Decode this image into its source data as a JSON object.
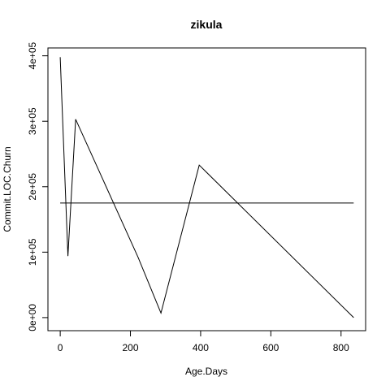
{
  "chart_data": {
    "type": "line",
    "title": "zikula",
    "xlabel": "Age.Days",
    "ylabel": "Commit.LOC.Churn",
    "xlim": [
      -35,
      870
    ],
    "ylim": [
      -20000,
      412000
    ],
    "x_ticks": [
      {
        "value": 0,
        "label": "0"
      },
      {
        "value": 200,
        "label": "200"
      },
      {
        "value": 400,
        "label": "400"
      },
      {
        "value": 600,
        "label": "600"
      },
      {
        "value": 800,
        "label": "800"
      }
    ],
    "y_ticks": [
      {
        "value": 0,
        "label": "0e+00"
      },
      {
        "value": 100000,
        "label": "1e+05"
      },
      {
        "value": 200000,
        "label": "2e+05"
      },
      {
        "value": 300000,
        "label": "3e+05"
      },
      {
        "value": 400000,
        "label": "4e+05"
      }
    ],
    "grid": false,
    "legend": "none",
    "series": [
      {
        "x": [
          0,
          22,
          44,
          222,
          287,
          396,
          836
        ],
        "y": [
          398000,
          94000,
          303000,
          92000,
          7000,
          233000,
          0
        ]
      },
      {
        "x": [
          0,
          836
        ],
        "y": [
          175000,
          175000
        ]
      }
    ]
  }
}
